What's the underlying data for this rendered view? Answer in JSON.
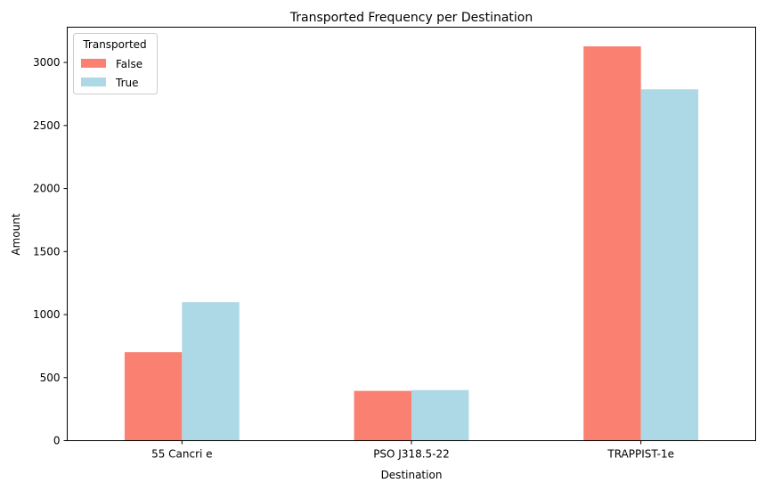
{
  "chart_data": {
    "type": "bar",
    "title": "Transported Frequency per Destination",
    "xlabel": "Destination",
    "ylabel": "Amount",
    "categories": [
      "55 Cancri e",
      "PSO J318.5-22",
      "TRAPPIST-1e"
    ],
    "series": [
      {
        "name": "False",
        "color": "#fa8072",
        "values": [
          702,
          395,
          3128
        ]
      },
      {
        "name": "True",
        "color": "#add8e6",
        "values": [
          1098,
          401,
          2787
        ]
      }
    ],
    "ylim": [
      0,
      3280
    ],
    "yticks": [
      0,
      500,
      1000,
      1500,
      2000,
      2500,
      3000
    ],
    "grid": false,
    "legend": {
      "title": "Transported",
      "placement": "top-left"
    }
  }
}
